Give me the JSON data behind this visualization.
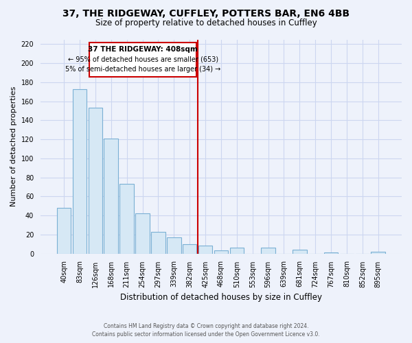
{
  "title": "37, THE RIDGEWAY, CUFFLEY, POTTERS BAR, EN6 4BB",
  "subtitle": "Size of property relative to detached houses in Cuffley",
  "xlabel": "Distribution of detached houses by size in Cuffley",
  "ylabel": "Number of detached properties",
  "bar_color": "#d6e8f5",
  "bar_edge_color": "#7ab0d4",
  "categories": [
    "40sqm",
    "83sqm",
    "126sqm",
    "168sqm",
    "211sqm",
    "254sqm",
    "297sqm",
    "339sqm",
    "382sqm",
    "425sqm",
    "468sqm",
    "510sqm",
    "553sqm",
    "596sqm",
    "639sqm",
    "681sqm",
    "724sqm",
    "767sqm",
    "810sqm",
    "852sqm",
    "895sqm"
  ],
  "values": [
    48,
    173,
    153,
    121,
    73,
    42,
    23,
    17,
    10,
    8,
    3,
    6,
    0,
    6,
    0,
    4,
    0,
    1,
    0,
    0,
    2
  ],
  "ylim": [
    0,
    225
  ],
  "yticks": [
    0,
    20,
    40,
    60,
    80,
    100,
    120,
    140,
    160,
    180,
    200,
    220
  ],
  "vline_x": 8.5,
  "annotation_title": "37 THE RIDGEWAY: 408sqm",
  "annotation_line1": "← 95% of detached houses are smaller (653)",
  "annotation_line2": "5% of semi-detached houses are larger (34) →",
  "footer_line1": "Contains HM Land Registry data © Crown copyright and database right 2024.",
  "footer_line2": "Contains public sector information licensed under the Open Government Licence v3.0.",
  "background_color": "#eef2fb",
  "plot_bg_color": "#eef2fb",
  "grid_color": "#ccd6f0",
  "vline_color": "#cc0000",
  "box_edge_color": "#cc0000"
}
